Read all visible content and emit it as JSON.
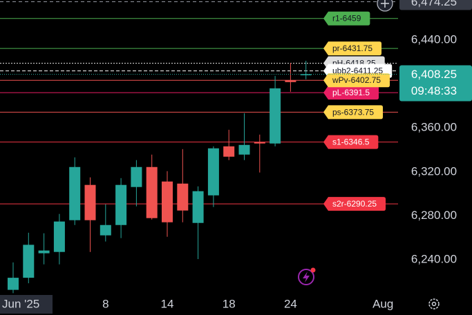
{
  "chart_data": {
    "type": "candlestick",
    "categories": [
      "Jun '25",
      null,
      null,
      null,
      null,
      null,
      "8",
      null,
      null,
      null,
      "14",
      null,
      null,
      null,
      "18",
      null,
      null,
      null,
      "24",
      null,
      null,
      null,
      null,
      null,
      "Aug"
    ],
    "open": [
      6212,
      6223,
      6245.3,
      6246.5,
      6275.4,
      6307.5,
      6261.6,
      6271,
      6305.6,
      6323.8,
      6310.6,
      6308.7,
      6272.9,
      6298,
      6342.6,
      6335.1,
      6346.4,
      6345.2,
      6402.9,
      6407.3,
      null,
      null,
      null,
      null,
      null
    ],
    "high": [
      6237,
      6264,
      6263.5,
      6281.1,
      6332.6,
      6314.4,
      6289.9,
      6313.7,
      6330.1,
      6335.1,
      6320,
      6340.1,
      6306.2,
      6342.6,
      6357.7,
      6372.8,
      6353.3,
      6406.7,
      6418.6,
      6420.5,
      null,
      null,
      null,
      null,
      null
    ],
    "low": [
      6209,
      6218,
      6235.2,
      6235.2,
      6271,
      6246.5,
      6256,
      6259.1,
      6288,
      6276,
      6260.3,
      6273.5,
      6240,
      6287.4,
      6330.1,
      6330.1,
      6318.8,
      6342.6,
      6392.3,
      6403.6,
      null,
      null,
      null,
      null,
      null
    ],
    "close": [
      6223,
      6253,
      6247.8,
      6274.2,
      6323.8,
      6275.4,
      6271,
      6307.5,
      6323.8,
      6277.3,
      6273.5,
      6284.2,
      6301.8,
      6340.8,
      6333.2,
      6343.9,
      6345.2,
      6395.4,
      6401.1,
      6408.25,
      null,
      null,
      null,
      null,
      null
    ],
    "up_color": "#26a69a",
    "down_color": "#ef5350",
    "ylim": [
      6208.6,
      6475.8
    ],
    "yticks": [
      {
        "value": 6240,
        "label": "6,240.00"
      },
      {
        "value": 6280,
        "label": "6,280.00"
      },
      {
        "value": 6320,
        "label": "6,320.00"
      },
      {
        "value": 6360,
        "label": "6,360.00"
      },
      {
        "value": 6440,
        "label": "6,440.00"
      }
    ],
    "levels": [
      {
        "label": "r1-6459",
        "value": 6459,
        "color": "#4caf50",
        "text_color": "#131722",
        "line": "solid"
      },
      {
        "label": "pr-6431.75",
        "value": 6431.75,
        "color": "#ffd54f",
        "text_color": "#131722",
        "line_color": "#4caf50",
        "line": "solid"
      },
      {
        "label": "pH-6418.25",
        "value": 6418.25,
        "color": "#e0e0e0",
        "text_color": "#131722",
        "line": "dotted"
      },
      {
        "label": "ubb2-6411.25",
        "value": 6411.25,
        "color": "#ffffff",
        "text_color": "#131722",
        "line": "dashed"
      },
      {
        "label": "pL-6391.5",
        "value": 6391.5,
        "color": "#e91e63",
        "text_color": "#ffffff",
        "line": "solid"
      },
      {
        "label": "wPv-6402.75",
        "value": 6402.75,
        "color": "#ffd54f",
        "text_color": "#131722",
        "line_color": "#ef5350",
        "line": "solid"
      },
      {
        "label": "ps-6373.75",
        "value": 6373.75,
        "color": "#ffd54f",
        "text_color": "#131722",
        "line_color": "#ef5350",
        "line": "solid"
      },
      {
        "label": "s1-6346.5",
        "value": 6346.5,
        "color": "#f23645",
        "text_color": "#ffffff",
        "line": "solid"
      },
      {
        "label": "s2r-6290.25",
        "value": 6290.25,
        "color": "#f23645",
        "text_color": "#ffffff",
        "line": "solid"
      }
    ],
    "crosshair": {
      "value": 6474.25,
      "label": "6,474.25"
    },
    "last_price": {
      "value": 6408.25,
      "label": "6,408.25",
      "countdown": "09:48:33"
    }
  }
}
